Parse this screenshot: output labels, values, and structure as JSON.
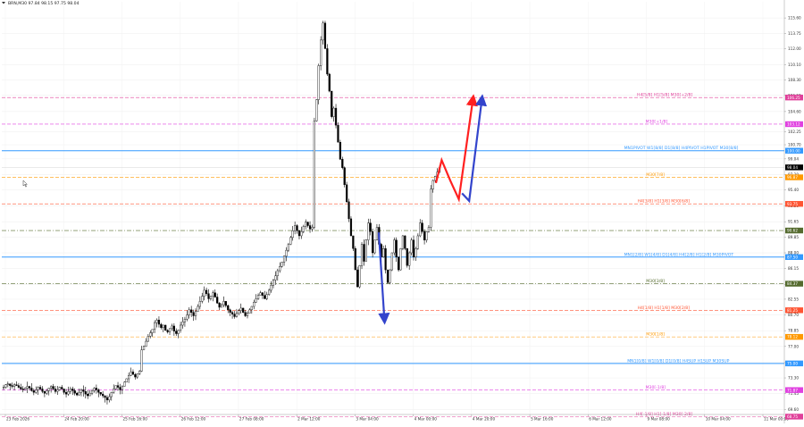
{
  "header": {
    "symbol_line": "BRN,M30  97.84 98.15 97.75 98.04",
    "menu_icon": "triangle-down-icon"
  },
  "chart_data": {
    "type": "candlestick",
    "symbol": "BRN,M30",
    "ohlc_shown": {
      "open": 97.84,
      "high": 98.15,
      "low": 97.75,
      "close": 98.04
    },
    "y_axis": {
      "range": [
        69.0,
        117.5
      ],
      "ticks": [
        "115.60",
        "113.75",
        "112.00",
        "110.10",
        "108.30",
        "106.50",
        "104.60",
        "102.25",
        "100.70",
        "99.04",
        "97.20",
        "95.40",
        "93.50",
        "91.65",
        "89.85",
        "88.00",
        "86.15",
        "84.30",
        "82.55",
        "80.70",
        "78.85",
        "77.00",
        "75.10",
        "73.30",
        "71.45",
        "69.60"
      ]
    },
    "x_axis": {
      "ticks": [
        "23 Feb 2026",
        "24 Feb 20:00",
        "25 Feb 16:00",
        "26 Feb 12:00",
        "27 Feb 08:00",
        "2 Mar 12:00",
        "3 Mar 04:00",
        "4 Mar 00:00",
        "4 Mar 20:00",
        "5 Mar 16:00",
        "6 Mar 12:00",
        "9 Mar 08:00",
        "10 Mar 04:00",
        "11 Mar 00:00"
      ]
    },
    "levels": [
      {
        "price": 106.25,
        "color": "#e0409a",
        "style": "dash",
        "label": "H4[5/8] H1[5/8] M30[+2/8]",
        "tag": "106.25"
      },
      {
        "price": 103.12,
        "color": "#e040e0",
        "style": "dash",
        "label": "M30[+1/8]",
        "tag": "103.12"
      },
      {
        "price": 100.0,
        "color": "#3399ff",
        "style": "solid",
        "label": "MN1PIVOT W1[8/8] D1[8/8] H4PIVOT H1PIVOT M30[8/8]",
        "tag": "100.00"
      },
      {
        "price": 96.87,
        "color": "#ff9900",
        "style": "dash",
        "label": "M30[7/8]",
        "tag": "96.87"
      },
      {
        "price": 93.75,
        "color": "#ff5533",
        "style": "dash",
        "label": "H4[3/8] H1[3/8] M30[6/8]",
        "tag": "93.75"
      },
      {
        "price": 90.62,
        "color": "#556b2f",
        "style": "dashdot",
        "label": "",
        "tag": "90.62"
      },
      {
        "price": 87.5,
        "color": "#3399ff",
        "style": "solid",
        "label": "MN1[2/8] W1[4/8] D1[4/8] H4[2/8] H1[2/8] M30PIVOT",
        "tag": "87.50"
      },
      {
        "price": 84.37,
        "color": "#556b2f",
        "style": "dashdot",
        "label": "M30[3/8]",
        "tag": "84.37"
      },
      {
        "price": 81.25,
        "color": "#ff5533",
        "style": "dash",
        "label": "H4[1/8] H1[1/8] M30[2/8]",
        "tag": "81.25"
      },
      {
        "price": 78.12,
        "color": "#ff9900",
        "style": "dash",
        "label": "M30[1/8]",
        "tag": "78.12"
      },
      {
        "price": 75.0,
        "color": "#3399ff",
        "style": "solid",
        "label": "MN1[0/8] W1[0/8] D1[0/8] H4SUP H1SUP M30SUP",
        "tag": "75.00"
      },
      {
        "price": 71.87,
        "color": "#e040e0",
        "style": "dash",
        "label": "M30[-1/8]",
        "tag": "71.87"
      },
      {
        "price": 68.75,
        "color": "#e0409a",
        "style": "dash",
        "label": "H4[-1/8] H1[-1/8] M30[-2/8]",
        "tag": "68.75"
      }
    ],
    "current_price": {
      "value": 98.04,
      "tag": "98.04"
    },
    "forecast_arrows": [
      {
        "color": "#ff2020",
        "points": [
          [
            0,
            96.2
          ],
          [
            4,
            98.9
          ],
          [
            10,
            96.5
          ],
          [
            16,
            94.3
          ],
          [
            26,
            106.2
          ]
        ]
      },
      {
        "color": "#3344cc",
        "points": [
          [
            12,
            95.0
          ],
          [
            17,
            94.1
          ],
          [
            26,
            106.2
          ]
        ]
      },
      {
        "color": "#3344cc",
        "points": [
          [
            0,
            90.4
          ],
          [
            4,
            80.0
          ]
        ]
      }
    ],
    "candles_closes": [
      72.2,
      72.5,
      72.6,
      72.4,
      72.3,
      72.5,
      72.4,
      72.2,
      72.0,
      71.9,
      72.1,
      72.3,
      72.1,
      71.8,
      71.6,
      71.9,
      72.2,
      72.0,
      71.7,
      71.5,
      71.8,
      72.1,
      72.3,
      72.0,
      71.7,
      71.9,
      72.2,
      72.0,
      71.6,
      71.4,
      71.7,
      72.0,
      71.8,
      71.5,
      71.3,
      71.6,
      71.9,
      71.7,
      71.4,
      71.2,
      71.5,
      71.8,
      72.1,
      71.9,
      71.6,
      71.4,
      71.2,
      71.0,
      70.7,
      71.1,
      71.6,
      72.0,
      72.4,
      72.2,
      71.9,
      72.3,
      72.8,
      73.2,
      73.6,
      74.0,
      73.7,
      73.4,
      73.8,
      74.1,
      76.6,
      77.0,
      77.6,
      78.2,
      78.6,
      79.0,
      79.8,
      80.1,
      79.6,
      79.2,
      79.5,
      78.9,
      78.7,
      79.1,
      79.4,
      78.8,
      78.5,
      78.9,
      79.5,
      79.9,
      80.2,
      80.7,
      81.3,
      81.0,
      80.6,
      81.1,
      81.7,
      82.3,
      82.9,
      83.6,
      83.2,
      82.6,
      82.9,
      83.3,
      82.8,
      82.1,
      81.6,
      81.9,
      82.3,
      81.8,
      81.3,
      81.0,
      80.8,
      80.5,
      80.9,
      81.2,
      81.5,
      81.0,
      80.6,
      80.9,
      81.3,
      81.7,
      82.2,
      82.6,
      83.0,
      83.3,
      83.0,
      82.6,
      83.1,
      83.6,
      84.2,
      84.8,
      85.3,
      85.9,
      86.4,
      86.9,
      87.6,
      88.3,
      89.0,
      89.8,
      90.6,
      91.2,
      90.6,
      90.0,
      90.5,
      91.1,
      91.6,
      91.2,
      90.8,
      91.0,
      103.5,
      106.0,
      110.0,
      113.0,
      115.0,
      112.0,
      109.0,
      107.0,
      104.0,
      105.0,
      103.0,
      101.0,
      99.0,
      98.0,
      96.0,
      94.0,
      92.0,
      90.0,
      88.5,
      86.0,
      84.0,
      86.5,
      89.0,
      87.0,
      89.5,
      91.5,
      90.5,
      88.0,
      89.5,
      91.0,
      89.0,
      87.5,
      88.5,
      86.0,
      84.5,
      86.0,
      88.0,
      89.5,
      87.5,
      86.0,
      88.5,
      90.0,
      88.5,
      86.5,
      88.0,
      89.5,
      87.5,
      88.5,
      90.0,
      91.5,
      90.5,
      89.5,
      90.5,
      91.0,
      95.5,
      96.5,
      97.0,
      97.5,
      98.0
    ]
  }
}
